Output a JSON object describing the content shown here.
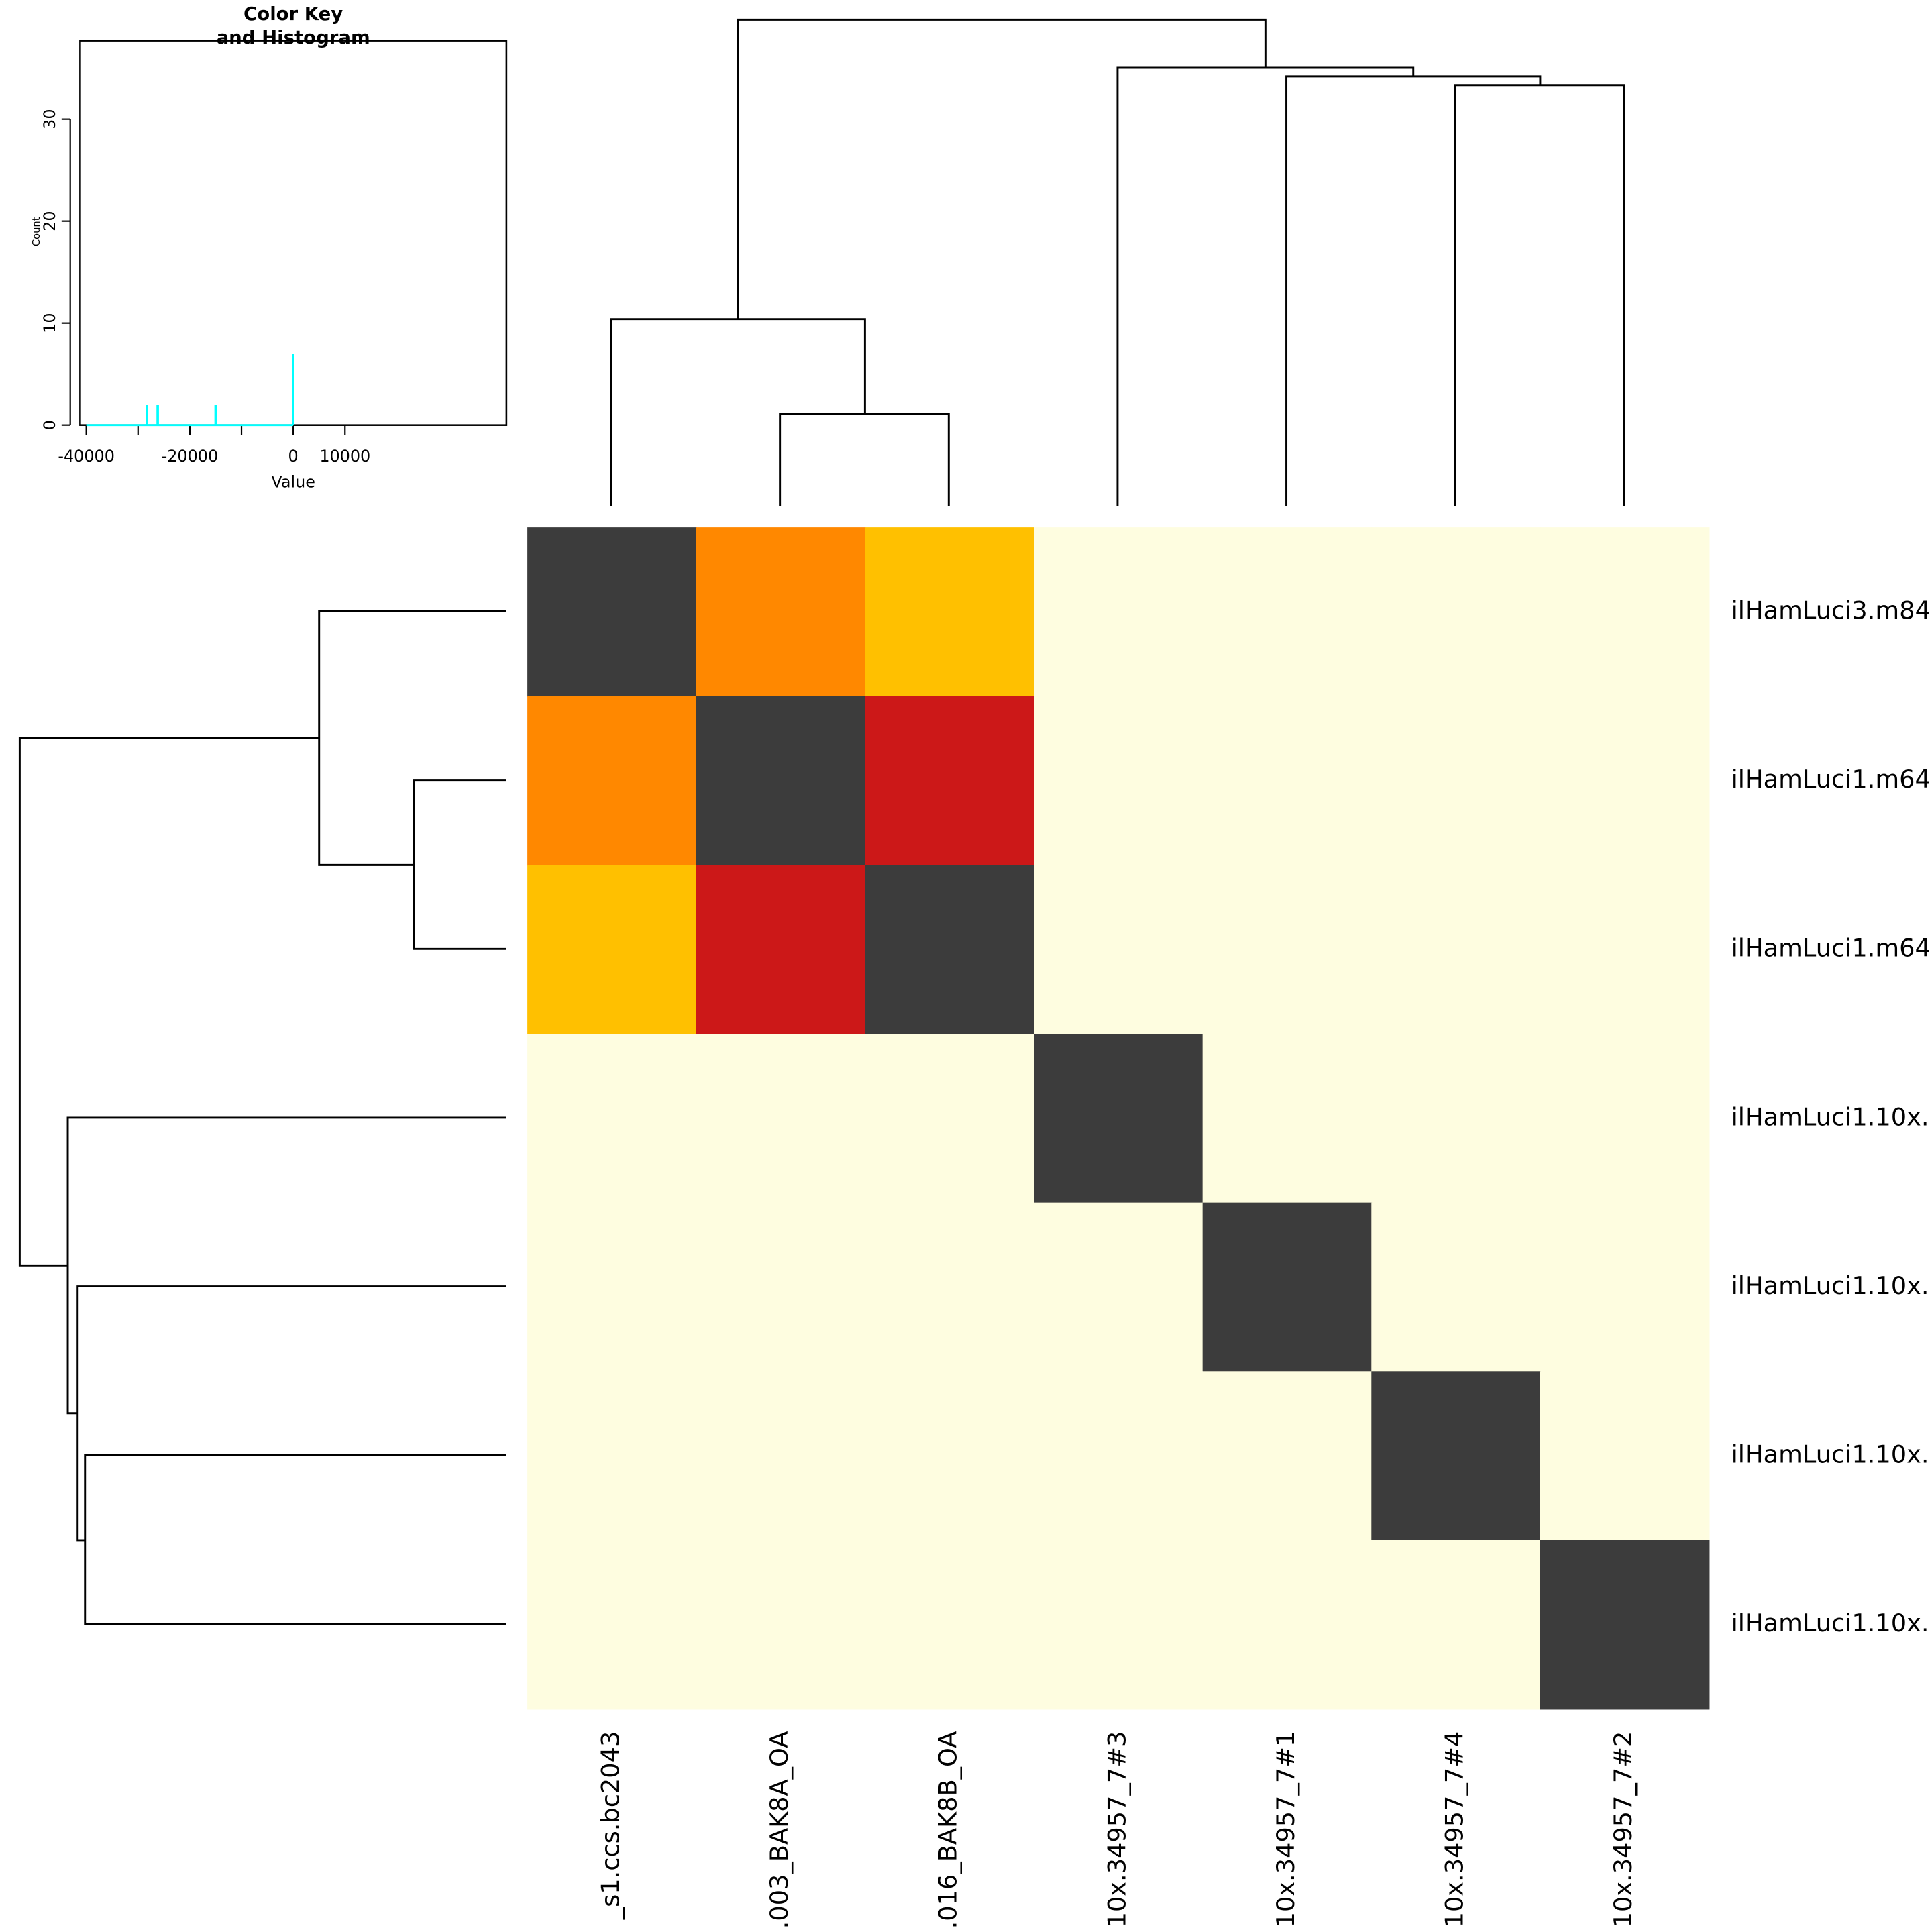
{
  "chart_data": {
    "type": "heatmap",
    "rows": [
      "ilHamLuci3.m84",
      "ilHamLuci1.m64",
      "ilHamLuci1.m64",
      "ilHamLuci1.10x.",
      "ilHamLuci1.10x.",
      "ilHamLuci1.10x.",
      "ilHamLuci1.10x."
    ],
    "columns": [
      "_s1.ccs.bc2043",
      ".003_BAK8A_OA",
      ".016_BAK8B_OA",
      "10x.34957_7#3",
      "10x.34957_7#1",
      "10x.34957_7#4",
      "10x.34957_7#2"
    ],
    "matrix": [
      [
        0,
        -26200,
        -15000,
        null,
        null,
        null,
        null
      ],
      [
        -26200,
        0,
        -28300,
        null,
        null,
        null,
        null
      ],
      [
        -15000,
        -28300,
        0,
        null,
        null,
        null,
        null
      ],
      [
        null,
        null,
        null,
        0,
        null,
        null,
        null
      ],
      [
        null,
        null,
        null,
        null,
        0,
        null,
        null
      ],
      [
        null,
        null,
        null,
        null,
        null,
        0,
        null
      ],
      [
        null,
        null,
        null,
        null,
        null,
        null,
        0
      ]
    ],
    "color_key": [
      {
        "value": -28300,
        "color": "#cc1818"
      },
      {
        "value": -26200,
        "color": "#ff8800"
      },
      {
        "value": -15000,
        "color": "#ffc000"
      },
      {
        "value": 0,
        "color": "#3c3c3c"
      }
    ],
    "na_color": "#fefde0",
    "key": {
      "type": "histogram",
      "title_lines": [
        "Color Key",
        "and Histogram"
      ],
      "xlabel": "Value",
      "ylabel": "Count",
      "xlim": [
        -41200,
        41200
      ],
      "ylim": [
        0,
        37.7
      ],
      "xticks": [
        -40000,
        {
          "value": -30000,
          "label": null
        },
        -20000,
        {
          "value": -10000,
          "label": null
        },
        0,
        10000
      ],
      "yticks": [
        0,
        10,
        20,
        30
      ],
      "x": [
        -28300,
        -26200,
        -15000,
        0
      ],
      "counts": [
        2,
        2,
        2,
        7
      ],
      "color": "#00ffff"
    }
  }
}
